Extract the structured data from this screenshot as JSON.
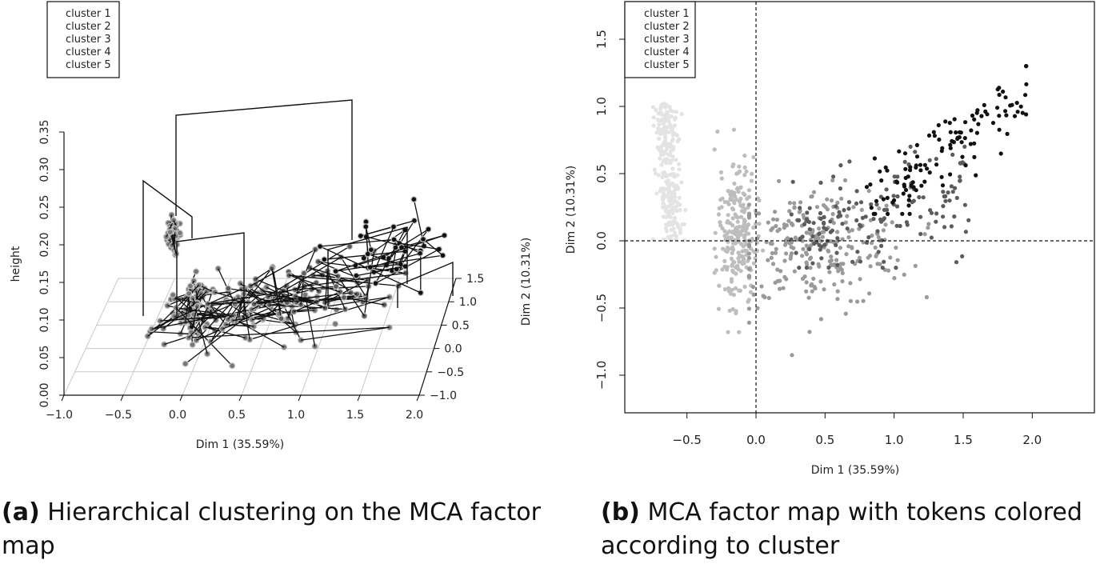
{
  "figure": {
    "caption_a_label": "(a)",
    "caption_a_text": "Hierarchical clustering on the MCA factor map",
    "caption_b_label": "(b)",
    "caption_b_text": "MCA factor map with tokens colored according to cluster"
  },
  "chart_data": [
    {
      "id": "a",
      "type": "scatter",
      "subtype": "3d-dendrogram",
      "title": "",
      "xlabel": "Dim 1 (35.59%)",
      "ylabel": "Dim 2 (10.31%)",
      "zlabel": "height",
      "x_ticks": [
        "−1.0",
        "−0.5",
        "0.0",
        "0.5",
        "1.0",
        "1.5",
        "2.0"
      ],
      "y_ticks": [
        "−1.0",
        "−0.5",
        "0.0",
        "0.5",
        "1.0",
        "1.5"
      ],
      "z_ticks": [
        "0.00",
        "0.05",
        "0.10",
        "0.15",
        "0.20",
        "0.25",
        "0.30",
        "0.35"
      ],
      "xlim": [
        -1.0,
        2.0
      ],
      "ylim": [
        -1.0,
        1.5
      ],
      "zlim": [
        0.0,
        0.35
      ],
      "legend": [
        "cluster 1",
        "cluster 2",
        "cluster 3",
        "cluster 4",
        "cluster 5"
      ],
      "legend_colors": [
        "#e3e3e3",
        "#bdbdbd",
        "#9a9a9a",
        "#5c5c5c",
        "#111111"
      ],
      "legend_position": "top-left",
      "dendrogram_heights": {
        "root": 0.32,
        "left_branch": 0.23,
        "cluster_1_merge": 0.225,
        "cluster_2_3_merge": 0.16,
        "right_branch": 0.16,
        "cluster_4_5_merge": 0.1
      }
    },
    {
      "id": "b",
      "type": "scatter",
      "title": "",
      "xlabel": "Dim 1 (35.59%)",
      "ylabel": "Dim 2 (10.31%)",
      "x_ticks": [
        "−0.5",
        "0.0",
        "0.5",
        "1.0",
        "1.5",
        "2.0"
      ],
      "y_ticks": [
        "−1.0",
        "−0.5",
        "0.0",
        "0.5",
        "1.0",
        "1.5"
      ],
      "xlim": [
        -0.95,
        2.45
      ],
      "ylim": [
        -1.28,
        1.78
      ],
      "reference_lines": {
        "x": 0.0,
        "y": 0.0,
        "style": "dashed"
      },
      "legend": [
        "cluster 1",
        "cluster 2",
        "cluster 3",
        "cluster 4",
        "cluster 5"
      ],
      "legend_colors": [
        "#e3e3e3",
        "#bdbdbd",
        "#9a9a9a",
        "#5c5c5c",
        "#111111"
      ],
      "legend_position": "top-left",
      "series": [
        {
          "name": "cluster 1",
          "color": "#e3e3e3",
          "x_range": [
            -0.7,
            -0.48
          ],
          "y_range": [
            0.0,
            1.02
          ],
          "count": 260,
          "centroid": [
            -0.6,
            0.62
          ]
        },
        {
          "name": "cluster 2",
          "color": "#bdbdbd",
          "x_range": [
            -0.3,
            0.05
          ],
          "y_range": [
            -0.68,
            0.95
          ],
          "count": 230,
          "centroid": [
            -0.14,
            0.05
          ]
        },
        {
          "name": "cluster 3",
          "color": "#9a9a9a",
          "x_range": [
            -0.05,
            1.25
          ],
          "y_range": [
            -0.85,
            0.45
          ],
          "count": 260,
          "centroid": [
            0.45,
            -0.05
          ]
        },
        {
          "name": "cluster 4",
          "color": "#5c5c5c",
          "x_range": [
            0.25,
            1.55
          ],
          "y_range": [
            -0.2,
            0.7
          ],
          "count": 150,
          "centroid": [
            0.95,
            0.25
          ]
        },
        {
          "name": "cluster 5",
          "color": "#111111",
          "x_range": [
            0.8,
            1.96
          ],
          "y_range": [
            0.2,
            1.3
          ],
          "count": 120,
          "centroid": [
            1.55,
            0.62
          ]
        }
      ]
    }
  ]
}
